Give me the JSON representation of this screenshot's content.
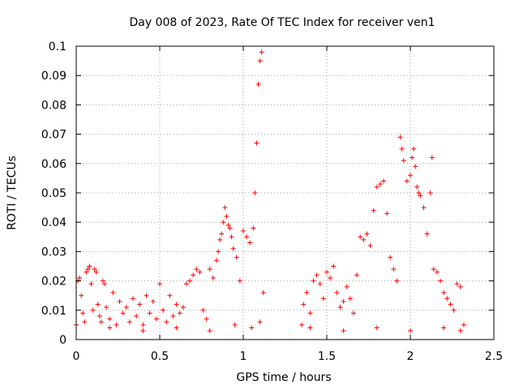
{
  "chart_data": {
    "type": "scatter",
    "title": "Day 008 of 2023, Rate Of TEC Index for receiver ven1",
    "xlabel": "GPS time / hours",
    "ylabel": "ROTI / TECUs",
    "xlim": [
      0,
      2.5
    ],
    "ylim": [
      0,
      0.1
    ],
    "xticks": [
      0,
      0.5,
      1,
      1.5,
      2,
      2.5
    ],
    "xtick_labels": [
      "0",
      "0.5",
      "1",
      "1.5",
      "2",
      "2.5"
    ],
    "yticks": [
      0,
      0.01,
      0.02,
      0.03,
      0.04,
      0.05,
      0.06,
      0.07,
      0.08,
      0.09,
      0.1
    ],
    "ytick_labels": [
      "0",
      "0.01",
      "0.02",
      "0.03",
      "0.04",
      "0.05",
      "0.06",
      "0.07",
      "0.08",
      "0.09",
      "0.1"
    ],
    "grid": true,
    "marker": "+",
    "color": "#ff0000",
    "series": [
      {
        "name": "ven1",
        "points": [
          [
            0.0,
            0.005
          ],
          [
            0.01,
            0.02
          ],
          [
            0.02,
            0.021
          ],
          [
            0.03,
            0.015
          ],
          [
            0.04,
            0.009
          ],
          [
            0.05,
            0.006
          ],
          [
            0.06,
            0.023
          ],
          [
            0.07,
            0.024
          ],
          [
            0.08,
            0.025
          ],
          [
            0.09,
            0.019
          ],
          [
            0.1,
            0.01
          ],
          [
            0.11,
            0.024
          ],
          [
            0.12,
            0.023
          ],
          [
            0.13,
            0.012
          ],
          [
            0.14,
            0.008
          ],
          [
            0.15,
            0.006
          ],
          [
            0.16,
            0.02
          ],
          [
            0.17,
            0.019
          ],
          [
            0.18,
            0.011
          ],
          [
            0.2,
            0.007
          ],
          [
            0.22,
            0.016
          ],
          [
            0.24,
            0.005
          ],
          [
            0.26,
            0.013
          ],
          [
            0.28,
            0.009
          ],
          [
            0.3,
            0.011
          ],
          [
            0.32,
            0.006
          ],
          [
            0.34,
            0.014
          ],
          [
            0.36,
            0.008
          ],
          [
            0.38,
            0.012
          ],
          [
            0.4,
            0.005
          ],
          [
            0.42,
            0.015
          ],
          [
            0.44,
            0.009
          ],
          [
            0.46,
            0.013
          ],
          [
            0.48,
            0.007
          ],
          [
            0.5,
            0.019
          ],
          [
            0.52,
            0.01
          ],
          [
            0.54,
            0.006
          ],
          [
            0.56,
            0.015
          ],
          [
            0.58,
            0.008
          ],
          [
            0.6,
            0.012
          ],
          [
            0.62,
            0.009
          ],
          [
            0.64,
            0.011
          ],
          [
            0.66,
            0.019
          ],
          [
            0.68,
            0.02
          ],
          [
            0.7,
            0.022
          ],
          [
            0.72,
            0.024
          ],
          [
            0.74,
            0.023
          ],
          [
            0.76,
            0.01
          ],
          [
            0.78,
            0.007
          ],
          [
            0.8,
            0.024
          ],
          [
            0.82,
            0.021
          ],
          [
            0.84,
            0.027
          ],
          [
            0.85,
            0.03
          ],
          [
            0.86,
            0.034
          ],
          [
            0.87,
            0.036
          ],
          [
            0.88,
            0.04
          ],
          [
            0.89,
            0.045
          ],
          [
            0.9,
            0.042
          ],
          [
            0.91,
            0.039
          ],
          [
            0.92,
            0.038
          ],
          [
            0.93,
            0.035
          ],
          [
            0.94,
            0.031
          ],
          [
            0.96,
            0.028
          ],
          [
            0.98,
            0.02
          ],
          [
            1.0,
            0.037
          ],
          [
            1.02,
            0.035
          ],
          [
            1.04,
            0.033
          ],
          [
            1.06,
            0.038
          ],
          [
            1.07,
            0.05
          ],
          [
            1.08,
            0.067
          ],
          [
            1.09,
            0.087
          ],
          [
            1.1,
            0.095
          ],
          [
            1.11,
            0.098
          ],
          [
            1.12,
            0.016
          ],
          [
            0.2,
            0.004
          ],
          [
            0.4,
            0.003
          ],
          [
            0.6,
            0.004
          ],
          [
            0.8,
            0.003
          ],
          [
            0.95,
            0.005
          ],
          [
            1.05,
            0.004
          ],
          [
            1.1,
            0.006
          ],
          [
            1.35,
            0.005
          ],
          [
            1.36,
            0.012
          ],
          [
            1.38,
            0.016
          ],
          [
            1.4,
            0.009
          ],
          [
            1.42,
            0.02
          ],
          [
            1.44,
            0.022
          ],
          [
            1.46,
            0.019
          ],
          [
            1.48,
            0.014
          ],
          [
            1.5,
            0.023
          ],
          [
            1.52,
            0.021
          ],
          [
            1.54,
            0.025
          ],
          [
            1.56,
            0.016
          ],
          [
            1.58,
            0.011
          ],
          [
            1.6,
            0.013
          ],
          [
            1.62,
            0.018
          ],
          [
            1.64,
            0.014
          ],
          [
            1.66,
            0.009
          ],
          [
            1.68,
            0.022
          ],
          [
            1.7,
            0.035
          ],
          [
            1.72,
            0.034
          ],
          [
            1.74,
            0.036
          ],
          [
            1.76,
            0.032
          ],
          [
            1.78,
            0.044
          ],
          [
            1.8,
            0.052
          ],
          [
            1.82,
            0.053
          ],
          [
            1.84,
            0.054
          ],
          [
            1.86,
            0.043
          ],
          [
            1.88,
            0.028
          ],
          [
            1.9,
            0.024
          ],
          [
            1.92,
            0.02
          ],
          [
            1.94,
            0.069
          ],
          [
            1.95,
            0.065
          ],
          [
            1.96,
            0.061
          ],
          [
            1.98,
            0.054
          ],
          [
            2.0,
            0.056
          ],
          [
            2.01,
            0.062
          ],
          [
            2.02,
            0.065
          ],
          [
            2.03,
            0.059
          ],
          [
            2.04,
            0.052
          ],
          [
            2.05,
            0.05
          ],
          [
            2.06,
            0.049
          ],
          [
            2.08,
            0.045
          ],
          [
            2.1,
            0.036
          ],
          [
            2.12,
            0.05
          ],
          [
            2.13,
            0.062
          ],
          [
            2.14,
            0.024
          ],
          [
            2.16,
            0.023
          ],
          [
            2.18,
            0.02
          ],
          [
            2.2,
            0.016
          ],
          [
            2.22,
            0.014
          ],
          [
            2.24,
            0.012
          ],
          [
            2.26,
            0.01
          ],
          [
            2.28,
            0.019
          ],
          [
            2.3,
            0.018
          ],
          [
            2.32,
            0.005
          ],
          [
            1.4,
            0.004
          ],
          [
            1.6,
            0.003
          ],
          [
            1.8,
            0.004
          ],
          [
            2.0,
            0.003
          ],
          [
            2.2,
            0.004
          ],
          [
            2.3,
            0.003
          ]
        ]
      }
    ]
  }
}
